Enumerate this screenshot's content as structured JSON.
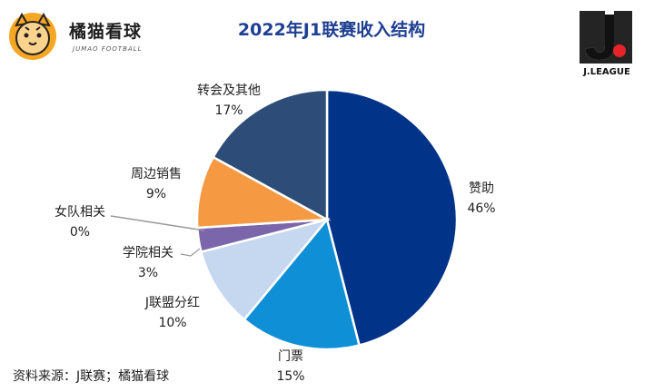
{
  "header": {
    "brand_name": "橘猫看球",
    "brand_sub": "JUMAO FOOTBALL",
    "logo_text": "J.LEAGUE"
  },
  "colors": {
    "title": "#1f3f93",
    "赞助": "#013388",
    "门票": "#0f8fd6",
    "J联盟分红": "#c6d7f0",
    "学院相关": "#7b66ab",
    "女队相关": "#a9a9a9",
    "周边销售": "#f59a43",
    "转会及其他": "#2d4d78"
  },
  "chart_data": {
    "type": "pie",
    "title": "2022年J1联赛收入结构",
    "slices": [
      {
        "label": "赞助",
        "value": 46,
        "value_label": "46%"
      },
      {
        "label": "门票",
        "value": 15,
        "value_label": "15%"
      },
      {
        "label": "J联盟分红",
        "value": 10,
        "value_label": "10%"
      },
      {
        "label": "学院相关",
        "value": 3,
        "value_label": "3%"
      },
      {
        "label": "女队相关",
        "value": 0,
        "value_label": "0%"
      },
      {
        "label": "周边销售",
        "value": 9,
        "value_label": "9%"
      },
      {
        "label": "转会及其他",
        "value": 17,
        "value_label": "17%"
      }
    ]
  },
  "footer": {
    "source": "资料来源：J联赛；橘猫看球"
  }
}
